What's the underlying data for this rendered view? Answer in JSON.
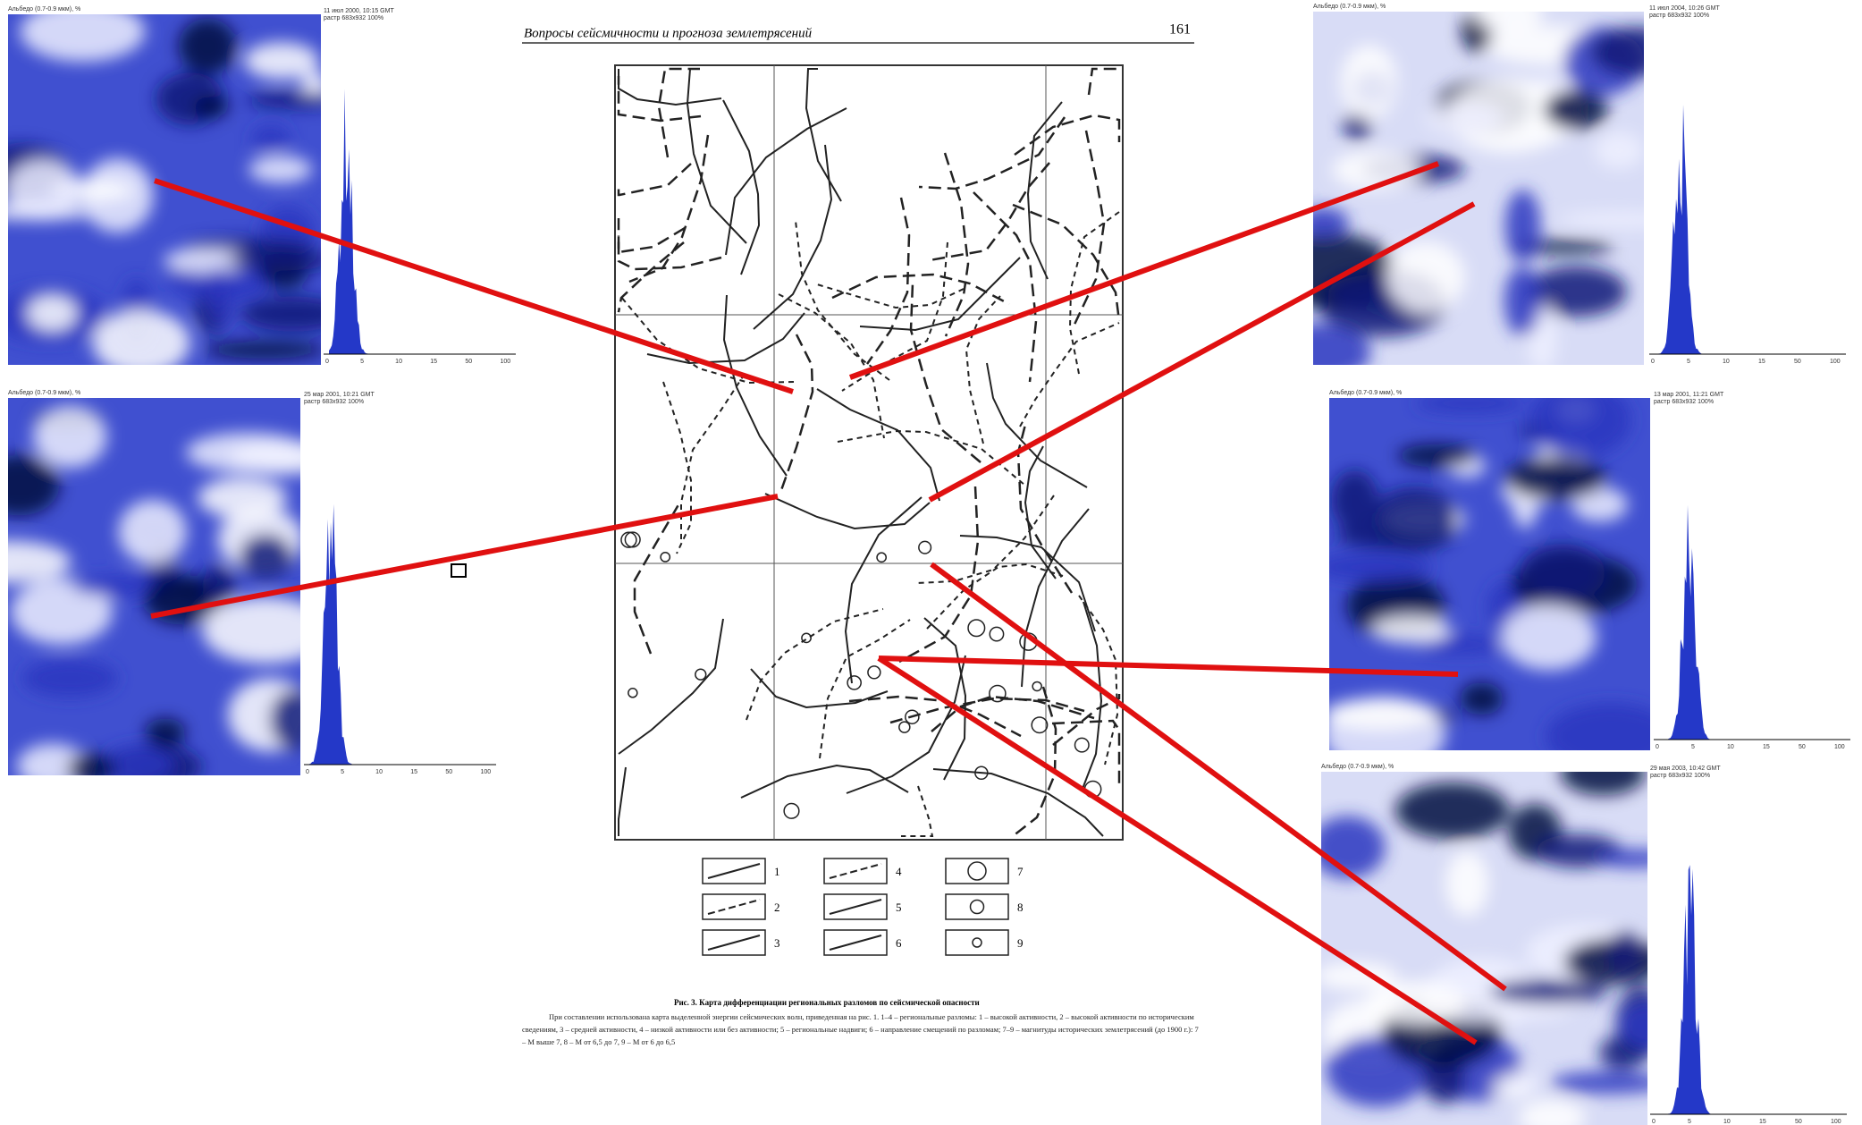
{
  "page": {
    "header": "Вопросы сейсмичности и прогноза землетрясений",
    "page_number": "161"
  },
  "legend": [
    "1",
    "2",
    "3",
    "4",
    "5",
    "6",
    "7",
    "8",
    "9"
  ],
  "caption": {
    "title": "Рис. 3. Карта дифференциации региональных разломов по сейсмической опасности",
    "text": "При составлении использована карта выделенной энергии сейсмических волн, приведенная на рис. 1. 1–4 – региональные разломы: 1 – высокой активности, 2 – высокой активности по историческим сведениям, 3 – средней активности, 4 – низкой активности или без активности; 5 – региональные надвиги; 6 – направление смещений по разломам; 7–9 – магнитуды исторических землетрясений (до 1900 г.): 7 – M выше 7, 8 – M от 6,5 до 7, 9 – M от 6 до 6,5"
  },
  "panels": [
    {
      "label": "Альбедо (0.7-0.9 мкм), %",
      "date": "11 июл 2000, 10:15 GMT",
      "info": "растр 683x932 100%",
      "axis": [
        "0",
        "5",
        "10",
        "15",
        "50",
        "100"
      ]
    },
    {
      "label": "Альбедо (0.7-0.9 мкм), %",
      "date": "25 мар 2001, 10:21 GMT",
      "info": "растр 683x932 100%",
      "axis": [
        "0",
        "5",
        "10",
        "15",
        "50",
        "100"
      ]
    },
    {
      "label": "Альбедо (0.7-0.9 мкм), %",
      "date": "11 июл 2004, 10:26 GMT",
      "info": "растр 683x932 100%",
      "axis": [
        "0",
        "5",
        "10",
        "15",
        "50",
        "100"
      ]
    },
    {
      "label": "Альбедо (0.7-0.9 мкм), %",
      "date": "13 мар 2001, 11:21 GMT",
      "info": "растр 683x932 100%",
      "axis": [
        "0",
        "5",
        "10",
        "15",
        "50",
        "100"
      ]
    },
    {
      "label": "Альбедо (0.7-0.9 мкм), %",
      "date": "29 мая 2003, 10:42 GMT",
      "info": "растр 683x932 100%",
      "axis": [
        "0",
        "5",
        "10",
        "15",
        "50",
        "100"
      ]
    }
  ]
}
